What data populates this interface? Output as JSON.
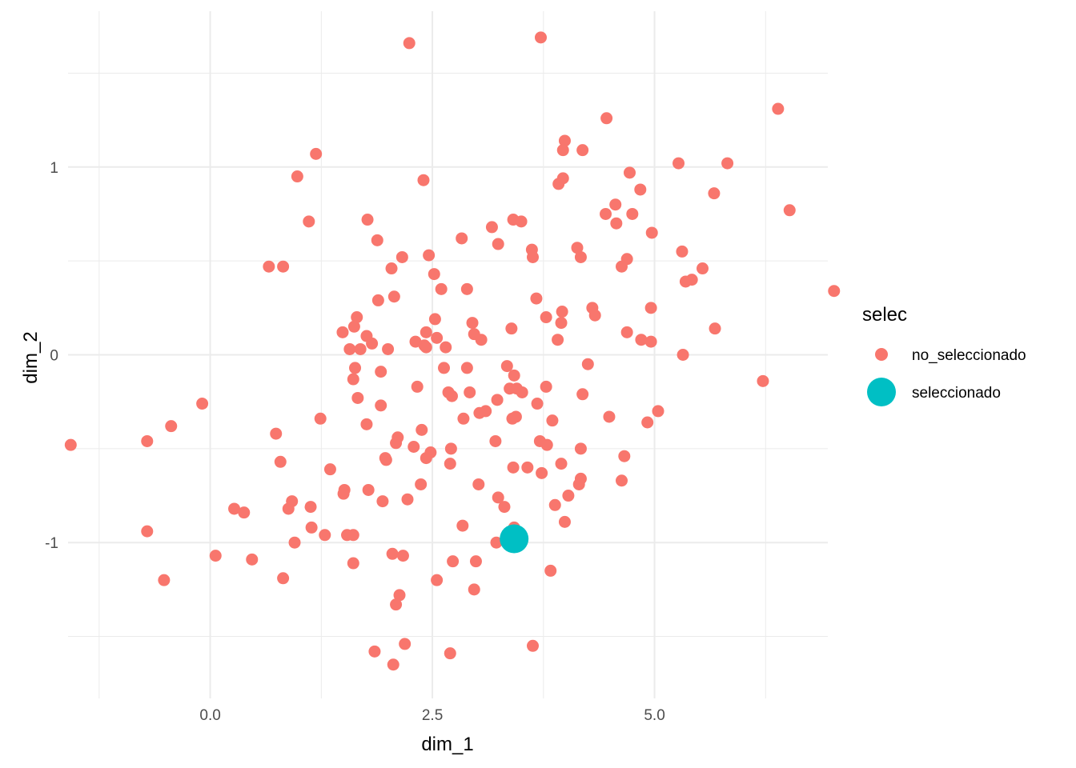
{
  "chart_data": {
    "type": "scatter",
    "xlabel": "dim_1",
    "ylabel": "dim_2",
    "xlim": [
      -1.6,
      6.95
    ],
    "ylim": [
      -1.83,
      1.83
    ],
    "x_ticks": [
      0.0,
      2.5,
      5.0
    ],
    "x_tick_labels": [
      "0.0",
      "2.5",
      "5.0"
    ],
    "y_ticks": [
      -1,
      0,
      1
    ],
    "y_tick_labels": [
      "-1",
      "0",
      "1"
    ],
    "grid": true,
    "legend": {
      "title": "selec",
      "position": "right",
      "entries": [
        "no_seleccionado",
        "seleccionado"
      ]
    },
    "colors": {
      "no_seleccionado": "#F8766D",
      "seleccionado": "#00BFC4"
    },
    "series": [
      {
        "name": "no_seleccionado",
        "points": [
          [
            2.24,
            1.66
          ],
          [
            3.72,
            1.69
          ],
          [
            6.39,
            1.31
          ],
          [
            4.46,
            1.26
          ],
          [
            3.99,
            1.14
          ],
          [
            3.97,
            1.09
          ],
          [
            4.19,
            1.09
          ],
          [
            1.19,
            1.07
          ],
          [
            5.27,
            1.02
          ],
          [
            5.82,
            1.02
          ],
          [
            4.72,
            0.97
          ],
          [
            0.98,
            0.95
          ],
          [
            3.97,
            0.94
          ],
          [
            3.92,
            0.91
          ],
          [
            2.4,
            0.93
          ],
          [
            4.84,
            0.88
          ],
          [
            5.67,
            0.86
          ],
          [
            4.56,
            0.8
          ],
          [
            6.52,
            0.77
          ],
          [
            4.45,
            0.75
          ],
          [
            4.75,
            0.75
          ],
          [
            4.57,
            0.7
          ],
          [
            3.41,
            0.72
          ],
          [
            3.5,
            0.71
          ],
          [
            1.11,
            0.71
          ],
          [
            1.77,
            0.72
          ],
          [
            3.17,
            0.68
          ],
          [
            4.97,
            0.65
          ],
          [
            2.83,
            0.62
          ],
          [
            1.88,
            0.61
          ],
          [
            3.24,
            0.59
          ],
          [
            4.13,
            0.57
          ],
          [
            3.62,
            0.56
          ],
          [
            5.31,
            0.55
          ],
          [
            2.46,
            0.53
          ],
          [
            2.16,
            0.52
          ],
          [
            3.63,
            0.52
          ],
          [
            4.17,
            0.52
          ],
          [
            4.69,
            0.51
          ],
          [
            0.66,
            0.47
          ],
          [
            0.82,
            0.47
          ],
          [
            2.04,
            0.46
          ],
          [
            4.63,
            0.47
          ],
          [
            5.54,
            0.46
          ],
          [
            2.52,
            0.43
          ],
          [
            5.42,
            0.4
          ],
          [
            5.35,
            0.39
          ],
          [
            2.6,
            0.35
          ],
          [
            2.89,
            0.35
          ],
          [
            7.02,
            0.34
          ],
          [
            2.07,
            0.31
          ],
          [
            3.67,
            0.3
          ],
          [
            1.89,
            0.29
          ],
          [
            4.3,
            0.25
          ],
          [
            4.96,
            0.25
          ],
          [
            3.96,
            0.23
          ],
          [
            4.33,
            0.21
          ],
          [
            1.65,
            0.2
          ],
          [
            3.78,
            0.2
          ],
          [
            2.53,
            0.19
          ],
          [
            2.95,
            0.17
          ],
          [
            3.95,
            0.17
          ],
          [
            1.62,
            0.15
          ],
          [
            3.39,
            0.14
          ],
          [
            5.68,
            0.14
          ],
          [
            1.49,
            0.12
          ],
          [
            2.43,
            0.12
          ],
          [
            2.97,
            0.11
          ],
          [
            4.69,
            0.12
          ],
          [
            1.76,
            0.1
          ],
          [
            2.55,
            0.09
          ],
          [
            3.05,
            0.08
          ],
          [
            3.91,
            0.08
          ],
          [
            4.85,
            0.08
          ],
          [
            2.31,
            0.07
          ],
          [
            4.96,
            0.07
          ],
          [
            1.82,
            0.06
          ],
          [
            2.41,
            0.05
          ],
          [
            2.43,
            0.04
          ],
          [
            2.65,
            0.04
          ],
          [
            1.57,
            0.03
          ],
          [
            1.69,
            0.03
          ],
          [
            2.0,
            0.03
          ],
          [
            5.32,
            0.0
          ],
          [
            4.25,
            -0.05
          ],
          [
            1.63,
            -0.07
          ],
          [
            2.63,
            -0.07
          ],
          [
            2.89,
            -0.07
          ],
          [
            3.34,
            -0.06
          ],
          [
            1.92,
            -0.09
          ],
          [
            3.42,
            -0.11
          ],
          [
            1.61,
            -0.13
          ],
          [
            6.22,
            -0.14
          ],
          [
            3.78,
            -0.17
          ],
          [
            2.33,
            -0.17
          ],
          [
            3.37,
            -0.18
          ],
          [
            3.45,
            -0.18
          ],
          [
            3.51,
            -0.2
          ],
          [
            2.68,
            -0.2
          ],
          [
            2.72,
            -0.22
          ],
          [
            2.92,
            -0.2
          ],
          [
            4.19,
            -0.21
          ],
          [
            1.66,
            -0.23
          ],
          [
            3.23,
            -0.24
          ],
          [
            -0.09,
            -0.26
          ],
          [
            1.92,
            -0.27
          ],
          [
            3.68,
            -0.26
          ],
          [
            3.1,
            -0.3
          ],
          [
            5.04,
            -0.3
          ],
          [
            3.03,
            -0.31
          ],
          [
            4.49,
            -0.33
          ],
          [
            1.24,
            -0.34
          ],
          [
            3.44,
            -0.33
          ],
          [
            3.4,
            -0.34
          ],
          [
            2.85,
            -0.34
          ],
          [
            3.85,
            -0.35
          ],
          [
            1.76,
            -0.37
          ],
          [
            4.92,
            -0.36
          ],
          [
            -0.44,
            -0.38
          ],
          [
            2.38,
            -0.4
          ],
          [
            0.74,
            -0.42
          ],
          [
            2.11,
            -0.44
          ],
          [
            2.09,
            -0.47
          ],
          [
            -0.71,
            -0.46
          ],
          [
            3.71,
            -0.46
          ],
          [
            3.79,
            -0.48
          ],
          [
            3.21,
            -0.46
          ],
          [
            2.29,
            -0.49
          ],
          [
            4.17,
            -0.5
          ],
          [
            2.71,
            -0.5
          ],
          [
            -1.57,
            -0.48
          ],
          [
            2.48,
            -0.52
          ],
          [
            1.97,
            -0.55
          ],
          [
            1.98,
            -0.56
          ],
          [
            4.66,
            -0.54
          ],
          [
            2.43,
            -0.55
          ],
          [
            0.79,
            -0.57
          ],
          [
            2.7,
            -0.58
          ],
          [
            3.95,
            -0.58
          ],
          [
            3.41,
            -0.6
          ],
          [
            3.57,
            -0.6
          ],
          [
            1.35,
            -0.61
          ],
          [
            3.73,
            -0.63
          ],
          [
            4.17,
            -0.66
          ],
          [
            4.63,
            -0.67
          ],
          [
            4.15,
            -0.69
          ],
          [
            3.02,
            -0.69
          ],
          [
            2.37,
            -0.69
          ],
          [
            1.51,
            -0.72
          ],
          [
            1.78,
            -0.72
          ],
          [
            1.5,
            -0.74
          ],
          [
            4.03,
            -0.75
          ],
          [
            2.22,
            -0.77
          ],
          [
            3.24,
            -0.76
          ],
          [
            1.94,
            -0.78
          ],
          [
            0.92,
            -0.78
          ],
          [
            3.88,
            -0.8
          ],
          [
            0.27,
            -0.82
          ],
          [
            0.88,
            -0.82
          ],
          [
            1.13,
            -0.81
          ],
          [
            3.31,
            -0.81
          ],
          [
            0.38,
            -0.84
          ],
          [
            3.99,
            -0.89
          ],
          [
            2.84,
            -0.91
          ],
          [
            3.42,
            -0.92
          ],
          [
            1.14,
            -0.92
          ],
          [
            -0.71,
            -0.94
          ],
          [
            1.54,
            -0.96
          ],
          [
            1.29,
            -0.96
          ],
          [
            1.61,
            -0.96
          ],
          [
            3.39,
            -0.97
          ],
          [
            0.95,
            -1.0
          ],
          [
            3.22,
            -1.0
          ],
          [
            0.06,
            -1.07
          ],
          [
            2.05,
            -1.06
          ],
          [
            2.17,
            -1.07
          ],
          [
            0.47,
            -1.09
          ],
          [
            1.61,
            -1.11
          ],
          [
            2.73,
            -1.1
          ],
          [
            2.99,
            -1.1
          ],
          [
            3.83,
            -1.15
          ],
          [
            0.82,
            -1.19
          ],
          [
            -0.52,
            -1.2
          ],
          [
            2.55,
            -1.2
          ],
          [
            2.97,
            -1.25
          ],
          [
            2.13,
            -1.28
          ],
          [
            2.09,
            -1.33
          ],
          [
            2.19,
            -1.54
          ],
          [
            3.63,
            -1.55
          ],
          [
            1.85,
            -1.58
          ],
          [
            2.7,
            -1.59
          ],
          [
            2.06,
            -1.65
          ]
        ]
      },
      {
        "name": "seleccionado",
        "points": [
          [
            3.42,
            -0.98
          ]
        ]
      }
    ]
  }
}
